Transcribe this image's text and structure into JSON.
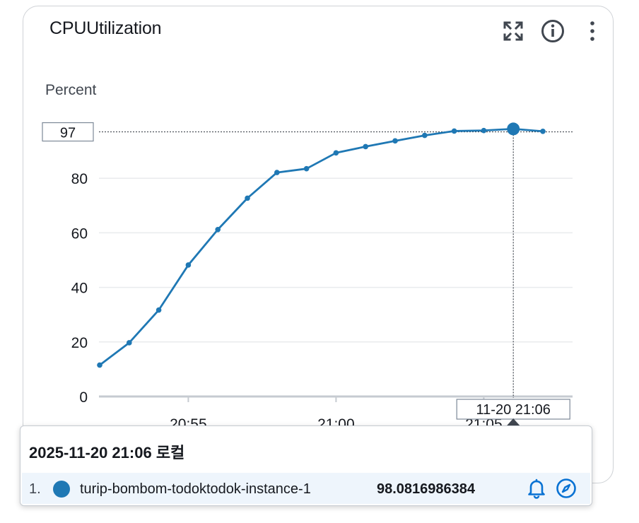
{
  "widget": {
    "title": "CPUUtilization",
    "icons": [
      "fullscreen-icon",
      "info-icon",
      "more-vertical-icon"
    ]
  },
  "chart_data": {
    "type": "line",
    "title": "CPUUtilization",
    "xlabel": "",
    "ylabel": "Percent",
    "ylim": [
      0,
      100
    ],
    "yticks": [
      0,
      20,
      40,
      60,
      80
    ],
    "xticks": [
      {
        "label": "20:55",
        "t": 55
      },
      {
        "label": "21:00",
        "t": 60
      },
      {
        "label": "21:05",
        "t": 65
      }
    ],
    "grid": true,
    "series": [
      {
        "name": "turip-bombom-todoktodok-instance-1",
        "color": "#1f78b4",
        "x": [
          52,
          53,
          54,
          55,
          56,
          57,
          58,
          59,
          60,
          61,
          62,
          63,
          64,
          65,
          66,
          67
        ],
        "values": [
          11.5,
          19.7,
          31.7,
          48.2,
          61.2,
          72.7,
          82.1,
          83.5,
          89.3,
          91.6,
          93.7,
          95.7,
          97.3,
          97.5,
          98.08,
          97.2
        ]
      }
    ],
    "hover": {
      "x": 66,
      "x_label": "11-20 21:06",
      "y_label": "97"
    }
  },
  "tooltip": {
    "title": "2025-11-20 21:06 로컬",
    "rows": [
      {
        "index": "1.",
        "name": "turip-bombom-todoktodok-instance-1",
        "value": "98.0816986384",
        "color": "#1f78b4"
      }
    ]
  }
}
